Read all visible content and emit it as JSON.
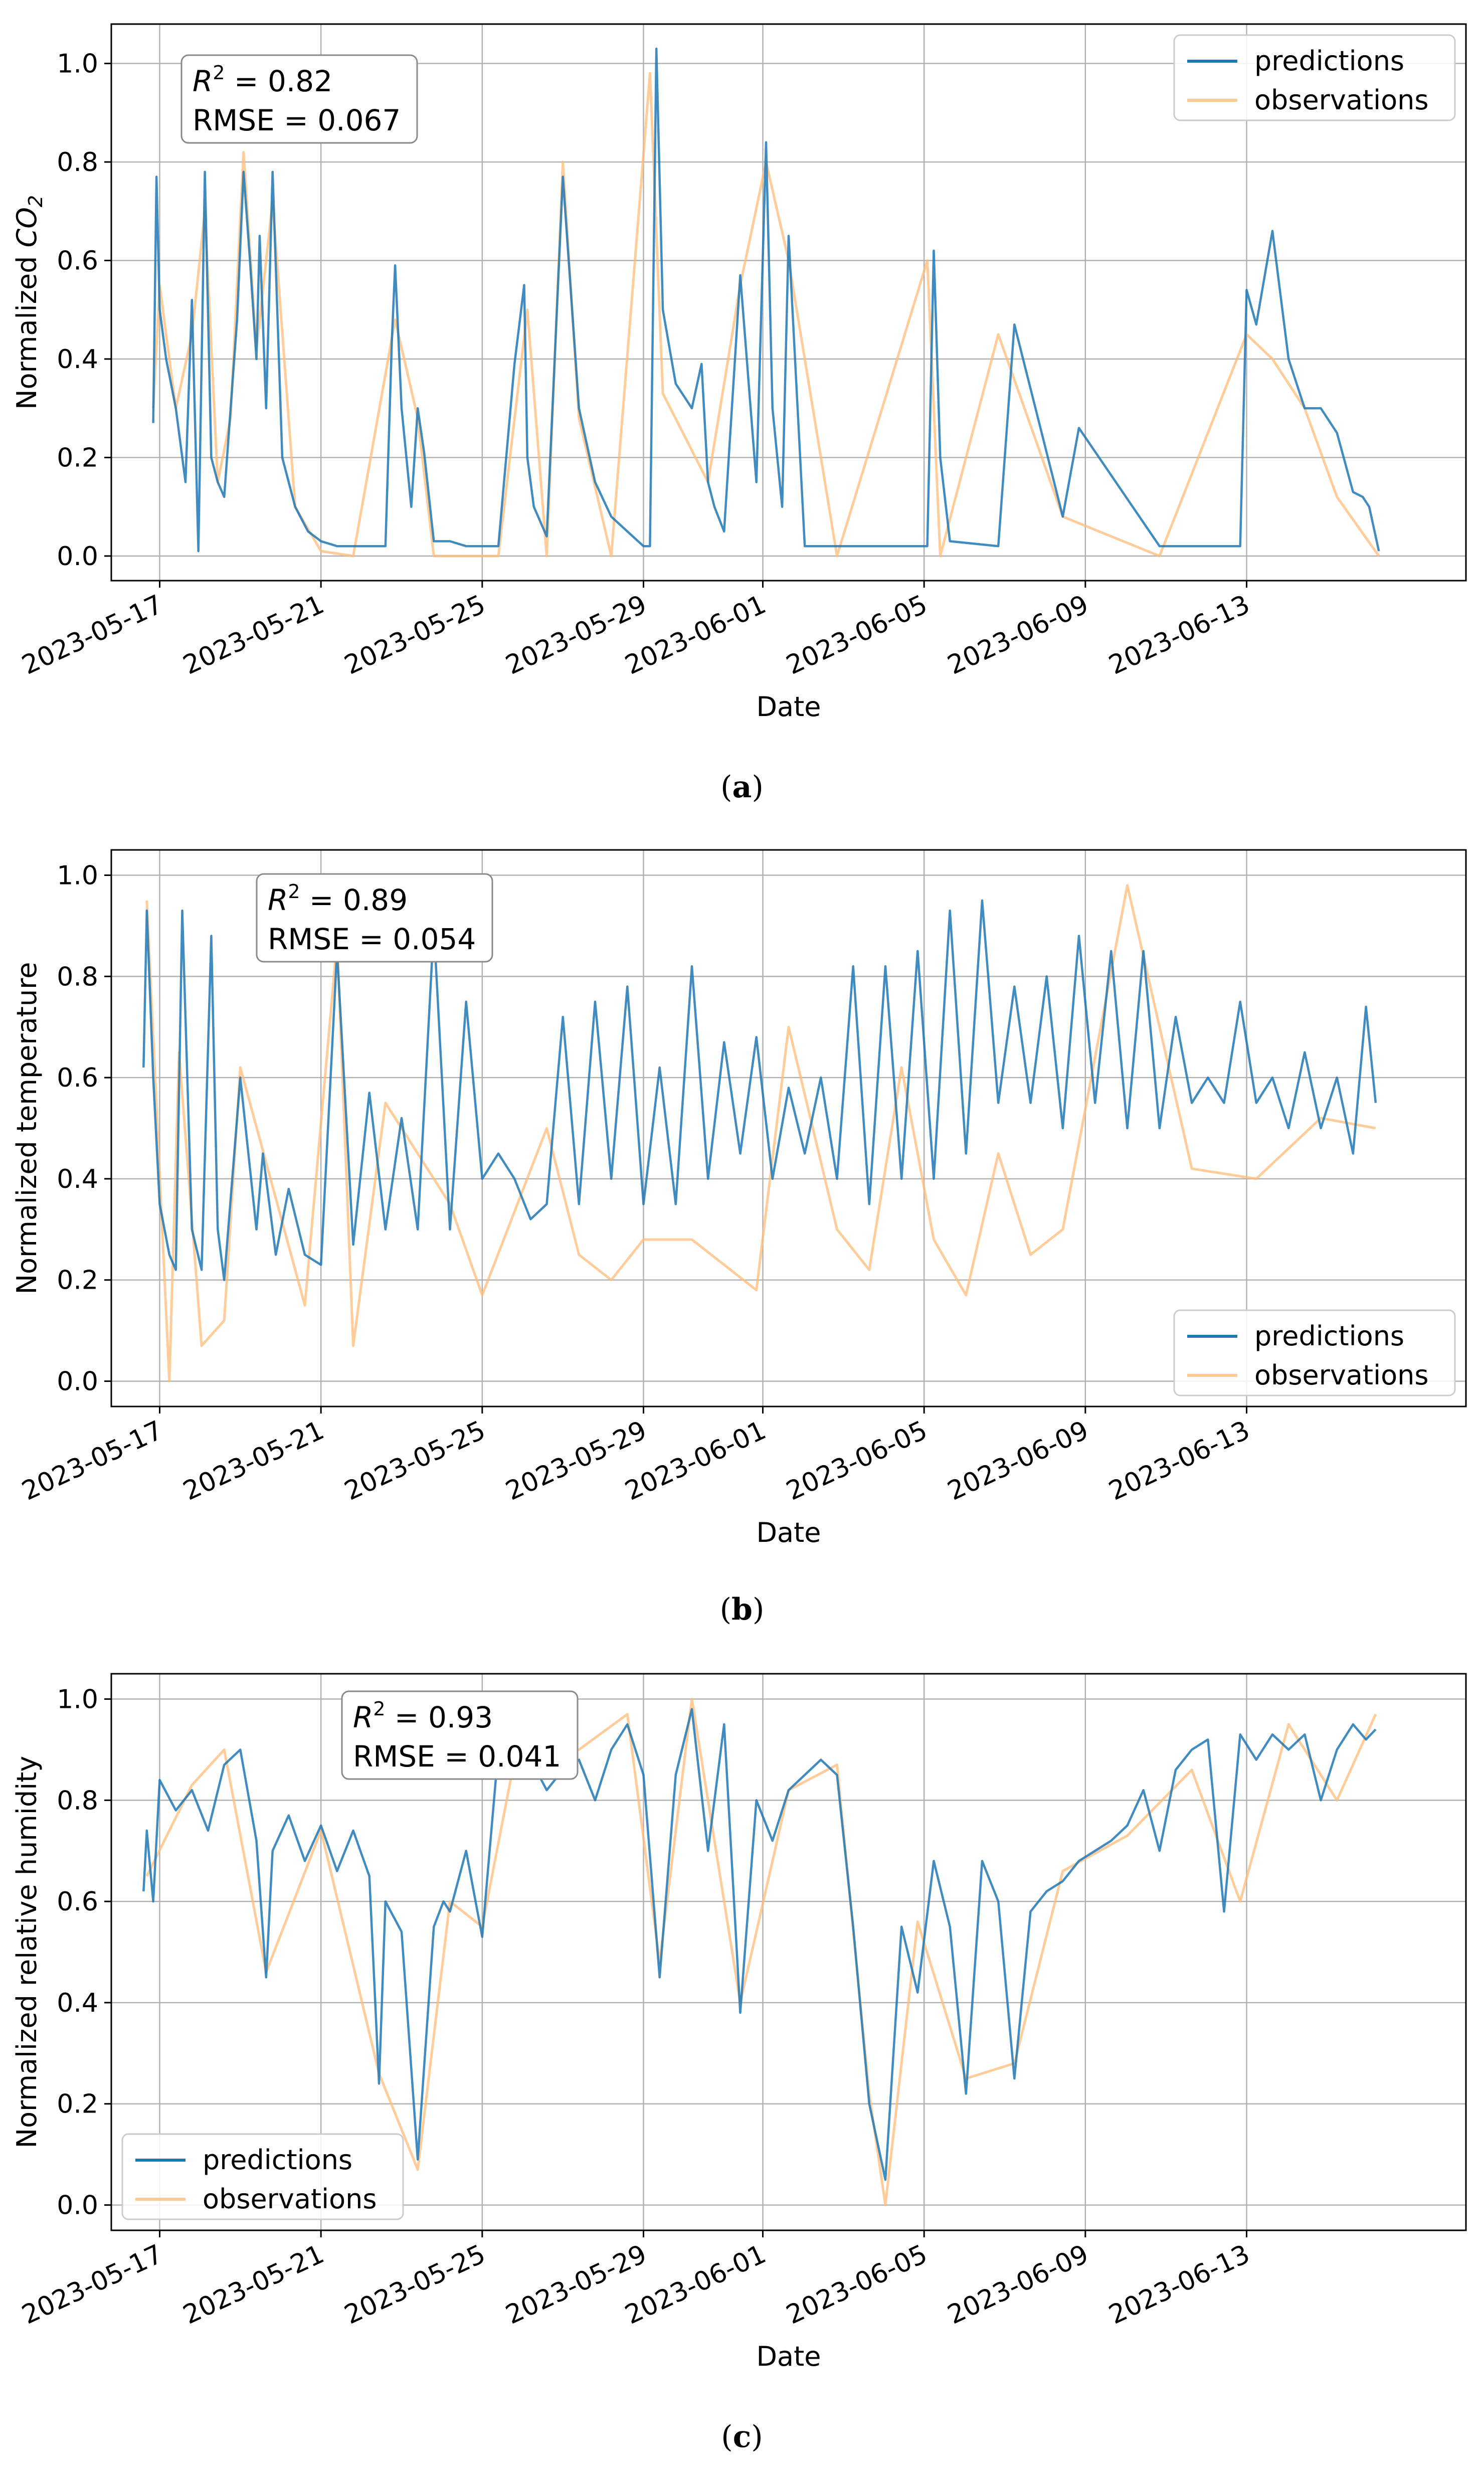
{
  "colors": {
    "predictions": "#1f77b4",
    "observations": "#ffbb78",
    "grid": "#b0b0b0"
  },
  "panels": [
    {
      "id": "a",
      "label_open": "(",
      "label_letter": "a",
      "label_close": ")"
    },
    {
      "id": "b",
      "label_open": "(",
      "label_letter": "b",
      "label_close": ")"
    },
    {
      "id": "c",
      "label_open": "(",
      "label_letter": "c",
      "label_close": ")"
    }
  ],
  "chart_data": [
    {
      "type": "line",
      "xlabel": "Date",
      "ylabel_text": "Normalized ",
      "ylabel_italic": "CO",
      "ylabel_sub": "2",
      "xlim": [
        -0.15,
        4.05
      ],
      "ylim": [
        -0.05,
        1.08
      ],
      "x_ticks": [
        0,
        0.5,
        1.0,
        1.5,
        1.87,
        2.37,
        2.87,
        3.37
      ],
      "x_tick_labels": [
        "2023-05-17",
        "2023-05-21",
        "2023-05-25",
        "2023-05-29",
        "2023-06-01",
        "2023-06-05",
        "2023-06-09",
        "2023-06-13"
      ],
      "y_ticks": [
        0.0,
        0.2,
        0.4,
        0.6,
        0.8,
        1.0
      ],
      "y_tick_labels": [
        "0.0",
        "0.2",
        "0.4",
        "0.6",
        "0.8",
        "1.0"
      ],
      "legend": {
        "position": "top-right",
        "entries": [
          "predictions",
          "observations"
        ]
      },
      "annotation": {
        "position": "top-left",
        "r2_symbol": "R",
        "r2_sup": "2",
        "r2_value": " = 0.82",
        "rmse": "RMSE = 0.067"
      },
      "series": [
        {
          "name": "predictions",
          "x": [
            -0.02,
            -0.01,
            0.0,
            0.02,
            0.05,
            0.08,
            0.1,
            0.12,
            0.14,
            0.16,
            0.18,
            0.2,
            0.22,
            0.24,
            0.26,
            0.28,
            0.3,
            0.31,
            0.33,
            0.35,
            0.38,
            0.42,
            0.46,
            0.5,
            0.55,
            0.6,
            0.7,
            0.72,
            0.73,
            0.75,
            0.78,
            0.8,
            0.82,
            0.85,
            0.9,
            0.95,
            1.0,
            1.05,
            1.1,
            1.13,
            1.14,
            1.16,
            1.2,
            1.25,
            1.3,
            1.35,
            1.4,
            1.45,
            1.5,
            1.52,
            1.54,
            1.56,
            1.6,
            1.65,
            1.68,
            1.7,
            1.72,
            1.75,
            1.8,
            1.85,
            1.88,
            1.9,
            1.93,
            1.95,
            2.0,
            2.1,
            2.2,
            2.3,
            2.38,
            2.4,
            2.42,
            2.45,
            2.6,
            2.65,
            2.8,
            2.85,
            3.1,
            3.35,
            3.37,
            3.4,
            3.45,
            3.5,
            3.55,
            3.6,
            3.65,
            3.7,
            3.73,
            3.75,
            3.78
          ],
          "values": [
            0.27,
            0.77,
            0.5,
            0.4,
            0.3,
            0.15,
            0.52,
            0.01,
            0.78,
            0.2,
            0.15,
            0.12,
            0.3,
            0.48,
            0.78,
            0.6,
            0.4,
            0.65,
            0.3,
            0.78,
            0.2,
            0.1,
            0.05,
            0.03,
            0.02,
            0.02,
            0.02,
            0.44,
            0.59,
            0.3,
            0.1,
            0.3,
            0.21,
            0.03,
            0.03,
            0.02,
            0.02,
            0.02,
            0.39,
            0.55,
            0.2,
            0.1,
            0.04,
            0.77,
            0.3,
            0.15,
            0.08,
            0.05,
            0.02,
            0.02,
            1.03,
            0.5,
            0.35,
            0.3,
            0.39,
            0.15,
            0.1,
            0.05,
            0.57,
            0.15,
            0.84,
            0.3,
            0.1,
            0.65,
            0.02,
            0.02,
            0.02,
            0.02,
            0.02,
            0.62,
            0.2,
            0.03,
            0.02,
            0.47,
            0.08,
            0.26,
            0.02,
            0.02,
            0.54,
            0.47,
            0.66,
            0.4,
            0.3,
            0.3,
            0.25,
            0.13,
            0.12,
            0.1,
            0.01
          ]
        },
        {
          "name": "observations",
          "x": [
            -0.02,
            0.0,
            0.05,
            0.1,
            0.14,
            0.18,
            0.22,
            0.26,
            0.3,
            0.35,
            0.42,
            0.5,
            0.6,
            0.73,
            0.8,
            0.85,
            0.95,
            1.05,
            1.14,
            1.2,
            1.25,
            1.3,
            1.4,
            1.52,
            1.56,
            1.7,
            1.8,
            1.88,
            1.95,
            2.1,
            2.38,
            2.42,
            2.6,
            2.8,
            3.1,
            3.37,
            3.45,
            3.55,
            3.65,
            3.78
          ],
          "values": [
            0.3,
            0.55,
            0.3,
            0.45,
            0.7,
            0.15,
            0.28,
            0.82,
            0.42,
            0.72,
            0.1,
            0.01,
            0.0,
            0.48,
            0.28,
            0.0,
            0.0,
            0.0,
            0.5,
            0.0,
            0.8,
            0.28,
            0.0,
            0.98,
            0.33,
            0.15,
            0.55,
            0.8,
            0.6,
            0.0,
            0.6,
            0.0,
            0.45,
            0.08,
            0.0,
            0.45,
            0.4,
            0.3,
            0.12,
            0.0
          ]
        }
      ]
    },
    {
      "type": "line",
      "xlabel": "Date",
      "ylabel_text": "Normalized temperature",
      "ylabel_italic": "",
      "ylabel_sub": "",
      "xlim": [
        -0.15,
        4.05
      ],
      "ylim": [
        -0.05,
        1.05
      ],
      "x_ticks": [
        0,
        0.5,
        1.0,
        1.5,
        1.87,
        2.37,
        2.87,
        3.37
      ],
      "x_tick_labels": [
        "2023-05-17",
        "2023-05-21",
        "2023-05-25",
        "2023-05-29",
        "2023-06-01",
        "2023-06-05",
        "2023-06-09",
        "2023-06-13"
      ],
      "y_ticks": [
        0.0,
        0.2,
        0.4,
        0.6,
        0.8,
        1.0
      ],
      "y_tick_labels": [
        "0.0",
        "0.2",
        "0.4",
        "0.6",
        "0.8",
        "1.0"
      ],
      "legend": {
        "position": "bottom-right",
        "entries": [
          "predictions",
          "observations"
        ]
      },
      "annotation": {
        "position": "top-left",
        "r2_symbol": "R",
        "r2_sup": "2",
        "r2_value": " = 0.89",
        "rmse": "RMSE = 0.054"
      },
      "series": [
        {
          "name": "predictions",
          "x": [
            -0.05,
            -0.04,
            -0.02,
            0.0,
            0.03,
            0.05,
            0.07,
            0.1,
            0.13,
            0.16,
            0.18,
            0.2,
            0.25,
            0.3,
            0.32,
            0.36,
            0.4,
            0.45,
            0.5,
            0.55,
            0.6,
            0.65,
            0.7,
            0.75,
            0.8,
            0.85,
            0.9,
            0.95,
            1.0,
            1.05,
            1.1,
            1.15,
            1.2,
            1.25,
            1.3,
            1.35,
            1.4,
            1.45,
            1.5,
            1.55,
            1.6,
            1.65,
            1.7,
            1.75,
            1.8,
            1.85,
            1.9,
            1.95,
            2.0,
            2.05,
            2.1,
            2.15,
            2.2,
            2.25,
            2.3,
            2.35,
            2.4,
            2.45,
            2.5,
            2.55,
            2.6,
            2.65,
            2.7,
            2.75,
            2.8,
            2.85,
            2.9,
            2.95,
            3.0,
            3.05,
            3.1,
            3.15,
            3.2,
            3.25,
            3.3,
            3.35,
            3.4,
            3.45,
            3.5,
            3.55,
            3.6,
            3.65,
            3.7,
            3.74,
            3.77
          ],
          "values": [
            0.62,
            0.93,
            0.6,
            0.35,
            0.25,
            0.22,
            0.93,
            0.3,
            0.22,
            0.88,
            0.3,
            0.2,
            0.6,
            0.3,
            0.45,
            0.25,
            0.38,
            0.25,
            0.23,
            0.85,
            0.27,
            0.57,
            0.3,
            0.52,
            0.3,
            0.9,
            0.3,
            0.75,
            0.4,
            0.45,
            0.4,
            0.32,
            0.35,
            0.72,
            0.35,
            0.75,
            0.4,
            0.78,
            0.35,
            0.62,
            0.35,
            0.82,
            0.4,
            0.67,
            0.45,
            0.68,
            0.4,
            0.58,
            0.45,
            0.6,
            0.4,
            0.82,
            0.35,
            0.82,
            0.4,
            0.85,
            0.4,
            0.93,
            0.45,
            0.95,
            0.55,
            0.78,
            0.55,
            0.8,
            0.5,
            0.88,
            0.55,
            0.85,
            0.5,
            0.85,
            0.5,
            0.72,
            0.55,
            0.6,
            0.55,
            0.75,
            0.55,
            0.6,
            0.5,
            0.65,
            0.5,
            0.6,
            0.45,
            0.74,
            0.55
          ]
        },
        {
          "name": "observations",
          "x": [
            -0.04,
            0.03,
            0.06,
            0.13,
            0.2,
            0.25,
            0.45,
            0.55,
            0.6,
            0.7,
            0.9,
            1.0,
            1.2,
            1.3,
            1.4,
            1.5,
            1.65,
            1.85,
            1.95,
            2.1,
            2.2,
            2.3,
            2.4,
            2.5,
            2.6,
            2.7,
            2.8,
            3.0,
            3.2,
            3.4,
            3.6,
            3.77
          ],
          "values": [
            0.95,
            0.0,
            0.65,
            0.07,
            0.12,
            0.62,
            0.15,
            0.87,
            0.07,
            0.55,
            0.35,
            0.17,
            0.5,
            0.25,
            0.2,
            0.28,
            0.28,
            0.18,
            0.7,
            0.3,
            0.22,
            0.62,
            0.28,
            0.17,
            0.45,
            0.25,
            0.3,
            0.98,
            0.42,
            0.4,
            0.52,
            0.5
          ]
        }
      ]
    },
    {
      "type": "line",
      "xlabel": "Date",
      "ylabel_text": "Normalized relative humidity",
      "ylabel_italic": "",
      "ylabel_sub": "",
      "xlim": [
        -0.15,
        4.05
      ],
      "ylim": [
        -0.05,
        1.05
      ],
      "x_ticks": [
        0,
        0.5,
        1.0,
        1.5,
        1.87,
        2.37,
        2.87,
        3.37
      ],
      "x_tick_labels": [
        "2023-05-17",
        "2023-05-21",
        "2023-05-25",
        "2023-05-29",
        "2023-06-01",
        "2023-06-05",
        "2023-06-09",
        "2023-06-13"
      ],
      "y_ticks": [
        0.0,
        0.2,
        0.4,
        0.6,
        0.8,
        1.0
      ],
      "y_tick_labels": [
        "0.0",
        "0.2",
        "0.4",
        "0.6",
        "0.8",
        "1.0"
      ],
      "legend": {
        "position": "bottom-left",
        "entries": [
          "predictions",
          "observations"
        ]
      },
      "annotation": {
        "position": "top-left",
        "r2_symbol": "R",
        "r2_sup": "2",
        "r2_value": " = 0.93",
        "rmse": "RMSE = 0.041"
      },
      "series": [
        {
          "name": "predictions",
          "x": [
            -0.05,
            -0.04,
            -0.02,
            0.0,
            0.05,
            0.1,
            0.15,
            0.2,
            0.25,
            0.3,
            0.33,
            0.35,
            0.4,
            0.45,
            0.5,
            0.55,
            0.6,
            0.65,
            0.68,
            0.7,
            0.75,
            0.8,
            0.85,
            0.88,
            0.9,
            0.95,
            1.0,
            1.05,
            1.1,
            1.15,
            1.2,
            1.25,
            1.3,
            1.35,
            1.4,
            1.45,
            1.5,
            1.55,
            1.6,
            1.65,
            1.7,
            1.75,
            1.8,
            1.85,
            1.9,
            1.95,
            2.0,
            2.05,
            2.1,
            2.15,
            2.2,
            2.25,
            2.3,
            2.35,
            2.4,
            2.45,
            2.5,
            2.55,
            2.6,
            2.65,
            2.7,
            2.75,
            2.8,
            2.85,
            2.9,
            2.95,
            3.0,
            3.05,
            3.1,
            3.15,
            3.2,
            3.25,
            3.3,
            3.35,
            3.4,
            3.45,
            3.5,
            3.55,
            3.6,
            3.65,
            3.7,
            3.74,
            3.77
          ],
          "values": [
            0.62,
            0.74,
            0.6,
            0.84,
            0.78,
            0.82,
            0.74,
            0.87,
            0.9,
            0.72,
            0.45,
            0.7,
            0.77,
            0.68,
            0.75,
            0.66,
            0.74,
            0.65,
            0.24,
            0.6,
            0.54,
            0.09,
            0.55,
            0.6,
            0.58,
            0.7,
            0.53,
            0.9,
            0.86,
            0.88,
            0.82,
            0.86,
            0.88,
            0.8,
            0.9,
            0.95,
            0.85,
            0.45,
            0.85,
            0.98,
            0.7,
            0.95,
            0.38,
            0.8,
            0.72,
            0.82,
            0.85,
            0.88,
            0.85,
            0.55,
            0.2,
            0.05,
            0.55,
            0.42,
            0.68,
            0.55,
            0.22,
            0.68,
            0.6,
            0.25,
            0.58,
            0.62,
            0.64,
            0.68,
            0.7,
            0.72,
            0.75,
            0.82,
            0.7,
            0.86,
            0.9,
            0.92,
            0.58,
            0.93,
            0.88,
            0.93,
            0.9,
            0.93,
            0.8,
            0.9,
            0.95,
            0.92,
            0.94
          ]
        },
        {
          "name": "observations",
          "x": [
            -0.04,
            0.1,
            0.2,
            0.33,
            0.5,
            0.68,
            0.8,
            0.9,
            1.0,
            1.1,
            1.3,
            1.45,
            1.55,
            1.65,
            1.8,
            1.95,
            2.1,
            2.2,
            2.25,
            2.35,
            2.5,
            2.65,
            2.8,
            3.0,
            3.2,
            3.35,
            3.5,
            3.65,
            3.77
          ],
          "values": [
            0.65,
            0.83,
            0.9,
            0.46,
            0.74,
            0.26,
            0.07,
            0.6,
            0.55,
            0.88,
            0.9,
            0.97,
            0.48,
            1.0,
            0.4,
            0.82,
            0.87,
            0.22,
            0.0,
            0.56,
            0.25,
            0.28,
            0.66,
            0.73,
            0.86,
            0.6,
            0.95,
            0.8,
            0.97
          ]
        }
      ]
    }
  ]
}
